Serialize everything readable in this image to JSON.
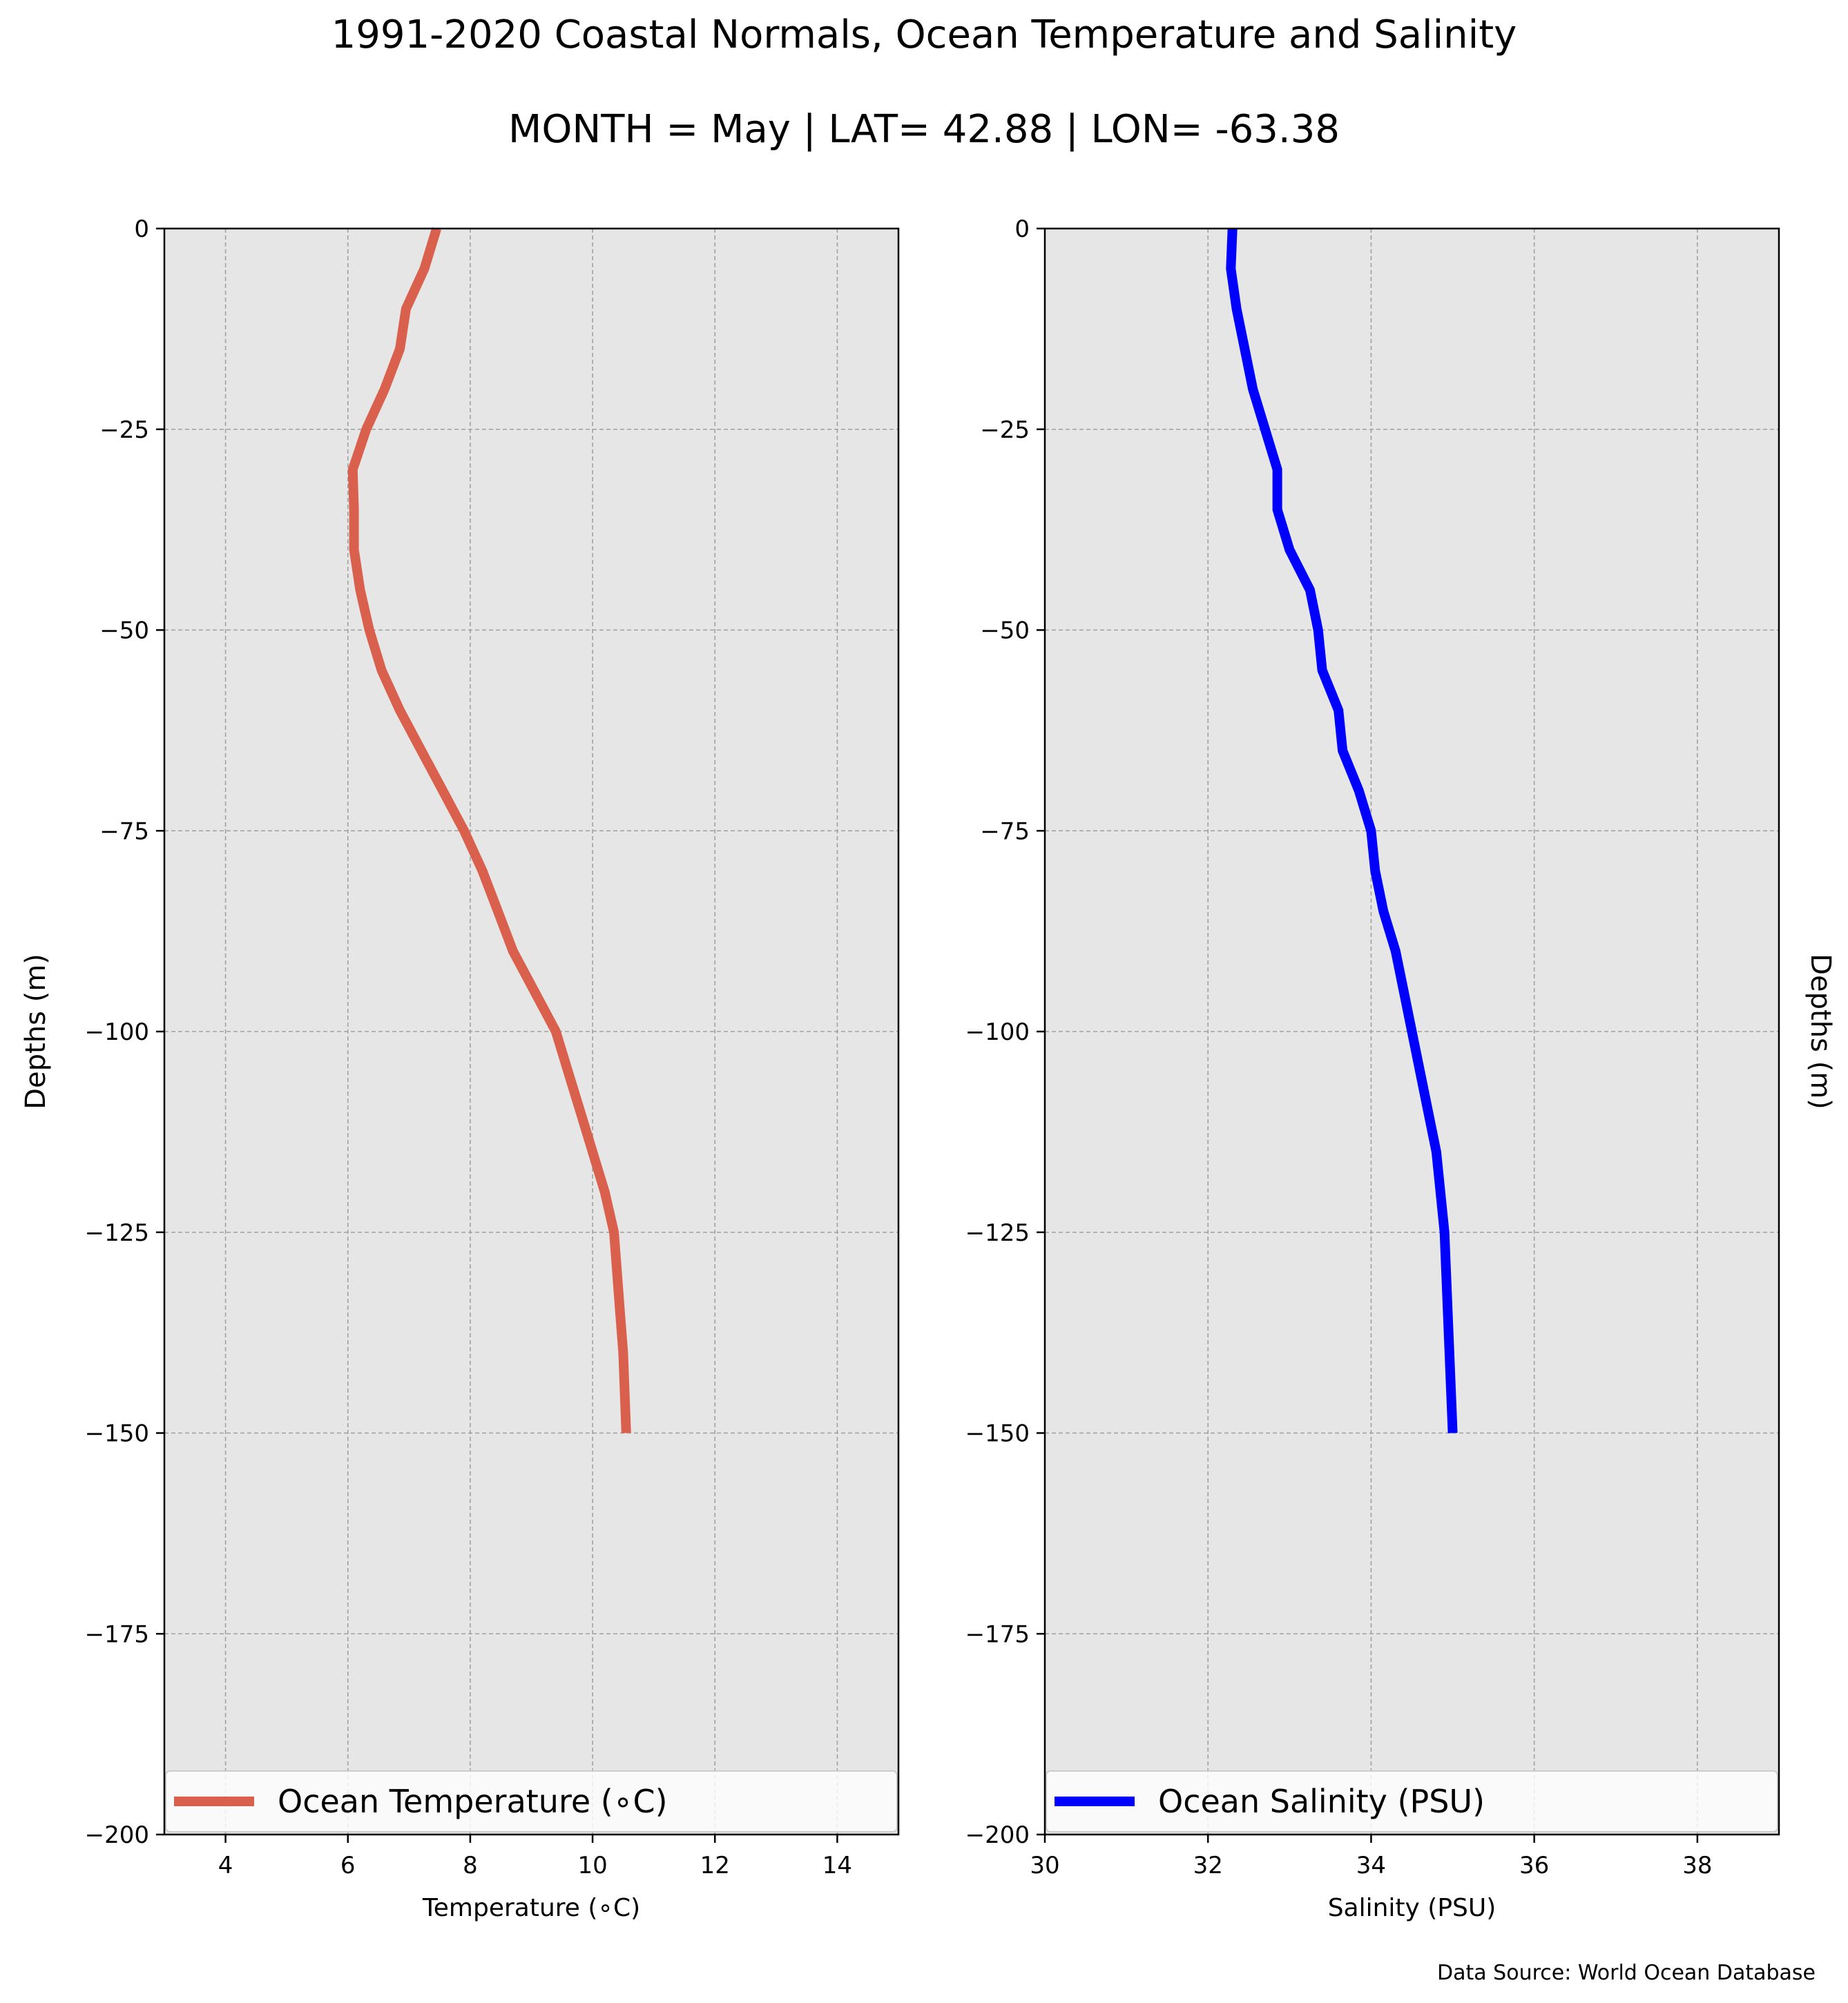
{
  "title": "1991-2020 Coastal Normals, Ocean Temperature and Salinity",
  "subtitle": "MONTH = May | LAT= 42.88 | LON= -63.38",
  "source_note": "Data Source: World Ocean Database",
  "colors": {
    "axes_bg": "#e6e6e6",
    "grid": "#a0a0a0",
    "temperature": "#d9604c",
    "salinity": "#0000ff"
  },
  "chart_data": [
    {
      "type": "line",
      "xlabel": "Temperature ($^\\circ$C)",
      "xlabel_display": "Temperature (∘C)",
      "ylabel": "Depths (m)",
      "xlim": [
        3,
        15
      ],
      "ylim": [
        -200,
        0
      ],
      "xticks": [
        4,
        6,
        8,
        10,
        12,
        14
      ],
      "yticks": [
        0,
        -25,
        -50,
        -75,
        -100,
        -125,
        -150,
        -175,
        -200
      ],
      "ytick_labels": [
        "0",
        "−25",
        "−50",
        "−75",
        "−100",
        "−125",
        "−150",
        "−175",
        "−200"
      ],
      "grid": true,
      "legend_position": "bottom",
      "series": [
        {
          "name": "Ocean Temperature (∘C)",
          "color": "#d9604c",
          "x": [
            7.45,
            7.25,
            6.95,
            6.85,
            6.6,
            6.3,
            6.08,
            6.1,
            6.1,
            6.2,
            6.35,
            6.55,
            6.85,
            7.2,
            7.55,
            7.9,
            8.2,
            8.45,
            8.7,
            9.05,
            9.4,
            9.6,
            9.8,
            10.0,
            10.2,
            10.35,
            10.4,
            10.45,
            10.5,
            10.55
          ],
          "y": [
            0,
            -5,
            -10,
            -15,
            -20,
            -25,
            -30,
            -35,
            -40,
            -45,
            -50,
            -55,
            -60,
            -65,
            -70,
            -75,
            -80,
            -85,
            -90,
            -95,
            -100,
            -105,
            -110,
            -115,
            -120,
            -125,
            -130,
            -135,
            -140,
            -150
          ]
        }
      ]
    },
    {
      "type": "line",
      "xlabel": "Salinity (PSU)",
      "ylabel": "Depths (m)",
      "xlim": [
        30,
        39
      ],
      "ylim": [
        -200,
        0
      ],
      "xticks": [
        30,
        32,
        34,
        36,
        38
      ],
      "yticks": [
        0,
        -25,
        -50,
        -75,
        -100,
        -125,
        -150,
        -175,
        -200
      ],
      "ytick_labels": [
        "0",
        "−25",
        "−50",
        "−75",
        "−100",
        "−125",
        "−150",
        "−175",
        "−200"
      ],
      "grid": true,
      "legend_position": "bottom",
      "series": [
        {
          "name": "Ocean Salinity (PSU)",
          "color": "#0000ff",
          "x": [
            32.3,
            32.28,
            32.35,
            32.45,
            32.55,
            32.7,
            32.85,
            32.85,
            33.0,
            33.25,
            33.35,
            33.4,
            33.6,
            33.65,
            33.85,
            34.0,
            34.05,
            34.15,
            34.3,
            34.4,
            34.5,
            34.6,
            34.7,
            34.8,
            34.85,
            34.9,
            35.0
          ],
          "y": [
            0,
            -5,
            -10,
            -15,
            -20,
            -25,
            -30,
            -35,
            -40,
            -45,
            -50,
            -55,
            -60,
            -65,
            -70,
            -75,
            -80,
            -85,
            -90,
            -95,
            -100,
            -105,
            -110,
            -115,
            -120,
            -125,
            -150
          ]
        }
      ]
    }
  ]
}
